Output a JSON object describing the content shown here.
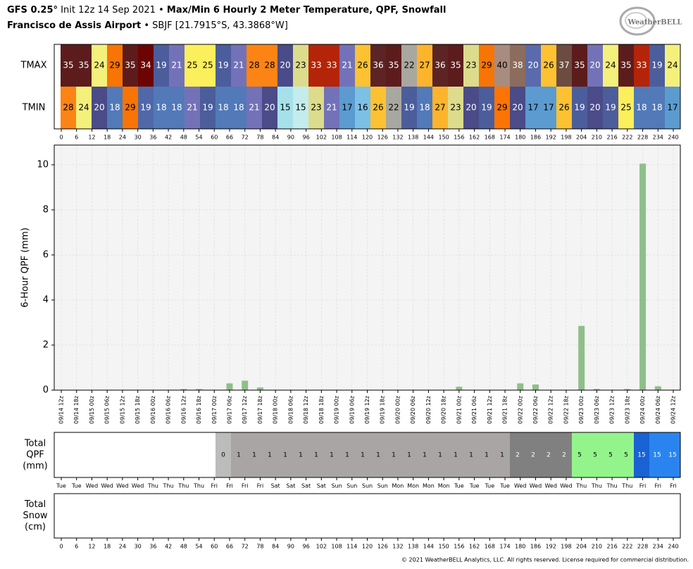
{
  "header": {
    "model": "GFS 0.25°",
    "init": " Init 12z 14 Sep 2021 • ",
    "title": "Max/Min 6 Hourly 2 Meter Temperature,  QPF,  Snowfall",
    "location": "Francisco de Assis Airport",
    "station": " • SBJF [21.7915°S, 43.3868°W]"
  },
  "logo": "WeatherBELL",
  "footer": "© 2021 WeatherBELL Analytics, LLC. All rights reserved. License required for commercial distribution.",
  "chart_data": [
    {
      "type": "heatmap",
      "xticks": [
        0,
        6,
        12,
        18,
        24,
        30,
        36,
        42,
        48,
        54,
        60,
        66,
        72,
        78,
        84,
        90,
        96,
        102,
        108,
        114,
        120,
        126,
        132,
        138,
        144,
        150,
        156,
        162,
        168,
        174,
        180,
        186,
        192,
        198,
        204,
        210,
        216,
        222,
        228,
        234,
        240
      ],
      "xlim": [
        0,
        240
      ],
      "series": [
        {
          "name": "TMAX",
          "values": [
            35,
            35,
            24,
            29,
            35,
            34,
            19,
            21,
            25,
            25,
            19,
            21,
            28,
            28,
            20,
            23,
            33,
            33,
            21,
            26,
            36,
            35,
            22,
            27,
            36,
            35,
            23,
            29,
            40,
            38,
            20,
            26,
            37,
            35,
            20,
            24,
            35,
            33,
            19,
            24
          ],
          "colors": [
            "#5c1c1c",
            "#5c1c1c",
            "#f4f07c",
            "#f87404",
            "#5c1c1c",
            "#6c0404",
            "#4c5d9c",
            "#7372b8",
            "#fcef5c",
            "#fcef5c",
            "#4c5d9c",
            "#7372b8",
            "#fc8414",
            "#fc8414",
            "#4a4b88",
            "#dcdc8c",
            "#b42408",
            "#b42408",
            "#7372b8",
            "#fcc232",
            "#5c2424",
            "#5c1c1c",
            "#a8a8a0",
            "#fcb42c",
            "#5c2424",
            "#5c1c1c",
            "#dcdc8c",
            "#f87404",
            "#a88c80",
            "#8c6c5c",
            "#5a6aac",
            "#fcc232",
            "#6c4c40",
            "#5c1c1c",
            "#7372b8",
            "#f4f07c",
            "#5c1c1c",
            "#b42408",
            "#4c5d9c",
            "#f4f07c"
          ]
        },
        {
          "name": "TMIN",
          "values": [
            28,
            24,
            20,
            18,
            29,
            19,
            18,
            18,
            21,
            19,
            18,
            18,
            21,
            20,
            15,
            15,
            23,
            21,
            17,
            16,
            26,
            22,
            19,
            18,
            27,
            23,
            20,
            19,
            29,
            20,
            17,
            17,
            26,
            19,
            20,
            19,
            25,
            18,
            18,
            17
          ],
          "colors": [
            "#fc8414",
            "#f4f07c",
            "#4a4b88",
            "#5279b8",
            "#f87404",
            "#5068a8",
            "#5279b8",
            "#5279b8",
            "#7372b8",
            "#4c5d9c",
            "#5279b8",
            "#5279b8",
            "#7372b8",
            "#4a4b88",
            "#a6e1ea",
            "#c4ecec",
            "#dcdc8c",
            "#7372b8",
            "#5b9bd0",
            "#7cc0e6",
            "#fcc232",
            "#a8a8a0",
            "#4c5d9c",
            "#5279b8",
            "#fcb42c",
            "#dcdc8c",
            "#4a4b88",
            "#4c5d9c",
            "#fc7404",
            "#4a4b88",
            "#5b9bd0",
            "#5b9bd0",
            "#fcc232",
            "#4c5d9c",
            "#4a4b88",
            "#4c5d9c",
            "#fcef5c",
            "#5279b8",
            "#5279b8",
            "#5b9bd0"
          ]
        }
      ]
    },
    {
      "type": "bar",
      "ylabel": "6-Hour QPF (mm)",
      "color": "#8fbf8a",
      "grid": true,
      "categories": [
        "09/14 12z",
        "09/14 18z",
        "09/15 00z",
        "09/15 06z",
        "09/15 12z",
        "09/15 18z",
        "09/16 00z",
        "09/16 06z",
        "09/16 12z",
        "09/16 18z",
        "09/17 00z",
        "09/17 06z",
        "09/17 12z",
        "09/17 18z",
        "09/18 00z",
        "09/18 06z",
        "09/18 12z",
        "09/18 18z",
        "09/19 00z",
        "09/19 06z",
        "09/19 12z",
        "09/19 18z",
        "09/20 00z",
        "09/20 06z",
        "09/20 12z",
        "09/20 18z",
        "09/21 00z",
        "09/21 06z",
        "09/21 12z",
        "09/21 18z",
        "09/22 00z",
        "09/22 06z",
        "09/22 12z",
        "09/22 18z",
        "09/23 00z",
        "09/23 06z",
        "09/23 12z",
        "09/23 18z",
        "09/24 00z",
        "09/24 06z",
        "09/24 12z"
      ],
      "values": [
        0,
        0,
        0,
        0,
        0,
        0,
        0,
        0,
        0.05,
        0.05,
        0,
        0.3,
        0.42,
        0.12,
        0,
        0,
        0,
        0,
        0,
        0,
        0,
        0,
        0,
        0,
        0,
        0,
        0.15,
        0,
        0,
        0,
        0.3,
        0.25,
        0,
        0,
        2.85,
        0.05,
        0,
        0.05,
        10.05,
        0.17,
        0
      ],
      "ylim": [
        0,
        10.875
      ],
      "yticks": [
        0,
        2,
        4,
        6,
        8,
        10
      ]
    },
    {
      "type": "heatmap",
      "label": [
        "Total",
        "QPF",
        "(mm)"
      ],
      "values": [
        null,
        null,
        null,
        null,
        null,
        null,
        null,
        null,
        null,
        null,
        0,
        1,
        1,
        1,
        1,
        1,
        1,
        1,
        1,
        1,
        1,
        1,
        1,
        1,
        1,
        1,
        1,
        1,
        1,
        2,
        2,
        2,
        2,
        5,
        5,
        5,
        5,
        15,
        15,
        15
      ],
      "colors": [
        null,
        null,
        null,
        null,
        null,
        null,
        null,
        null,
        null,
        null,
        "#bcbcbc",
        "#aaa5a5",
        "#aaa5a5",
        "#aaa5a5",
        "#aaa5a5",
        "#aaa5a5",
        "#aaa5a5",
        "#aaa5a5",
        "#aaa5a5",
        "#aaa5a5",
        "#aaa5a5",
        "#aaa5a5",
        "#aaa5a5",
        "#aaa5a5",
        "#aaa5a5",
        "#aaa5a5",
        "#aaa5a5",
        "#aaa5a5",
        "#aaa5a5",
        "#808080",
        "#808080",
        "#808080",
        "#808080",
        "#94f48c",
        "#94f48c",
        "#94f48c",
        "#94f48c",
        "#1862d4",
        "#2a84f0",
        "#2a84f0"
      ],
      "day_labels": [
        "Tue",
        "Tue",
        "Wed",
        "Wed",
        "Wed",
        "Wed",
        "Thu",
        "Thu",
        "Thu",
        "Thu",
        "Fri",
        "Fri",
        "Fri",
        "Fri",
        "Sat",
        "Sat",
        "Sat",
        "Sat",
        "Sun",
        "Sun",
        "Sun",
        "Sun",
        "Mon",
        "Mon",
        "Mon",
        "Mon",
        "Tue",
        "Tue",
        "Tue",
        "Tue",
        "Wed",
        "Wed",
        "Wed",
        "Wed",
        "Thu",
        "Thu",
        "Thu",
        "Thu",
        "Fri",
        "Fri",
        "Fri"
      ]
    },
    {
      "type": "heatmap",
      "label": [
        "Total",
        "Snow",
        "(cm)"
      ],
      "xticks": [
        0,
        6,
        12,
        18,
        24,
        30,
        36,
        42,
        48,
        54,
        60,
        66,
        72,
        78,
        84,
        90,
        96,
        102,
        108,
        114,
        120,
        126,
        132,
        138,
        144,
        150,
        156,
        162,
        168,
        174,
        180,
        186,
        192,
        198,
        204,
        210,
        216,
        222,
        228,
        234,
        240
      ],
      "xlim": [
        0,
        240
      ]
    }
  ]
}
